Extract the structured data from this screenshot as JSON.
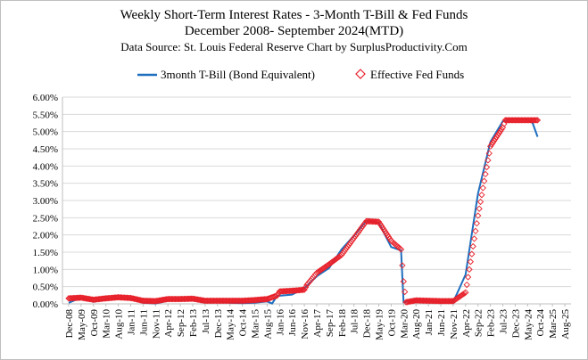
{
  "chart_data": {
    "type": "line",
    "title": "Weekly Short-Term Interest Rates - 3-Month T-Bill & Fed Funds",
    "subtitle": "December 2008- September 2024(MTD)",
    "source": "Data Source: St. Louis Federal Reserve   Chart by SurplusProductivity.Com",
    "xlabel": "",
    "ylabel": "",
    "ylim": [
      0,
      6
    ],
    "y_ticks": [
      "0.00%",
      "0.50%",
      "1.00%",
      "1.50%",
      "2.00%",
      "2.50%",
      "3.00%",
      "3.50%",
      "4.00%",
      "4.50%",
      "5.00%",
      "5.50%",
      "6.00%"
    ],
    "x_ticks": [
      "Dec-08",
      "May-09",
      "Oct-09",
      "Mar-10",
      "Aug-10",
      "Jan-11",
      "Jun-11",
      "Nov-11",
      "Apr-12",
      "Sep-12",
      "Feb-13",
      "Jul-13",
      "Dec-13",
      "May-14",
      "Oct-14",
      "Mar-15",
      "Aug-15",
      "Jan-16",
      "Jun-16",
      "Nov-16",
      "Apr-17",
      "Sep-17",
      "Feb-18",
      "Jul-18",
      "Dec-18",
      "May-19",
      "Oct-19",
      "Mar-20",
      "Aug-20",
      "Jan-21",
      "Jun-21",
      "Nov-21",
      "Apr-22",
      "Sep-22",
      "Feb-23",
      "Jul-23",
      "Dec-23",
      "May-24",
      "Oct-24",
      "Mar-25",
      "Aug-25"
    ],
    "grid": true,
    "legend_position": "top",
    "series": [
      {
        "name": "3month T-Bill (Bond Equivalent)",
        "style": "line",
        "color": "#1f6fbf",
        "points": [
          [
            "2008-12",
            0.03
          ],
          [
            "2009-05",
            0.18
          ],
          [
            "2009-10",
            0.06
          ],
          [
            "2010-03",
            0.14
          ],
          [
            "2010-08",
            0.15
          ],
          [
            "2011-01",
            0.15
          ],
          [
            "2011-06",
            0.03
          ],
          [
            "2011-11",
            0.01
          ],
          [
            "2012-04",
            0.09
          ],
          [
            "2012-09",
            0.1
          ],
          [
            "2013-02",
            0.1
          ],
          [
            "2013-07",
            0.04
          ],
          [
            "2013-12",
            0.07
          ],
          [
            "2014-05",
            0.03
          ],
          [
            "2014-10",
            0.02
          ],
          [
            "2015-03",
            0.03
          ],
          [
            "2015-08",
            0.07
          ],
          [
            "2015-10",
            0.01
          ],
          [
            "2015-12",
            0.23
          ],
          [
            "2016-06",
            0.27
          ],
          [
            "2016-11",
            0.45
          ],
          [
            "2017-04",
            0.8
          ],
          [
            "2017-09",
            1.04
          ],
          [
            "2018-02",
            1.58
          ],
          [
            "2018-07",
            1.98
          ],
          [
            "2018-12",
            2.4
          ],
          [
            "2019-05",
            2.35
          ],
          [
            "2019-10",
            1.65
          ],
          [
            "2020-02",
            1.55
          ],
          [
            "2020-03",
            0.05
          ],
          [
            "2020-08",
            0.1
          ],
          [
            "2021-01",
            0.08
          ],
          [
            "2021-06",
            0.04
          ],
          [
            "2021-11",
            0.05
          ],
          [
            "2022-04",
            0.85
          ],
          [
            "2022-09",
            3.2
          ],
          [
            "2023-02",
            4.7
          ],
          [
            "2023-07",
            5.3
          ],
          [
            "2023-12",
            5.38
          ],
          [
            "2024-05",
            5.35
          ],
          [
            "2024-07",
            5.25
          ],
          [
            "2024-09",
            4.85
          ]
        ]
      },
      {
        "name": "Effective Fed Funds",
        "style": "markers",
        "color": "#e8202a",
        "points": [
          [
            "2008-12",
            0.16
          ],
          [
            "2009-05",
            0.18
          ],
          [
            "2009-10",
            0.12
          ],
          [
            "2010-03",
            0.16
          ],
          [
            "2010-08",
            0.19
          ],
          [
            "2011-01",
            0.17
          ],
          [
            "2011-06",
            0.09
          ],
          [
            "2011-11",
            0.08
          ],
          [
            "2012-04",
            0.14
          ],
          [
            "2012-09",
            0.14
          ],
          [
            "2013-02",
            0.15
          ],
          [
            "2013-07",
            0.09
          ],
          [
            "2013-12",
            0.09
          ],
          [
            "2014-05",
            0.09
          ],
          [
            "2014-10",
            0.09
          ],
          [
            "2015-03",
            0.11
          ],
          [
            "2015-08",
            0.14
          ],
          [
            "2015-12",
            0.24
          ],
          [
            "2016-01",
            0.36
          ],
          [
            "2016-06",
            0.38
          ],
          [
            "2016-11",
            0.41
          ],
          [
            "2016-12",
            0.55
          ],
          [
            "2017-04",
            0.9
          ],
          [
            "2017-09",
            1.15
          ],
          [
            "2018-02",
            1.42
          ],
          [
            "2018-07",
            1.91
          ],
          [
            "2018-12",
            2.4
          ],
          [
            "2019-05",
            2.38
          ],
          [
            "2019-10",
            1.83
          ],
          [
            "2020-02",
            1.58
          ],
          [
            "2020-03",
            0.65
          ],
          [
            "2020-04",
            0.05
          ],
          [
            "2020-08",
            0.1
          ],
          [
            "2021-01",
            0.09
          ],
          [
            "2021-06",
            0.08
          ],
          [
            "2021-11",
            0.08
          ],
          [
            "2022-04",
            0.33
          ],
          [
            "2022-09",
            2.56
          ],
          [
            "2023-02",
            4.57
          ],
          [
            "2023-07",
            5.12
          ],
          [
            "2023-08",
            5.33
          ],
          [
            "2023-12",
            5.33
          ],
          [
            "2024-05",
            5.33
          ],
          [
            "2024-09",
            5.33
          ]
        ]
      }
    ]
  }
}
